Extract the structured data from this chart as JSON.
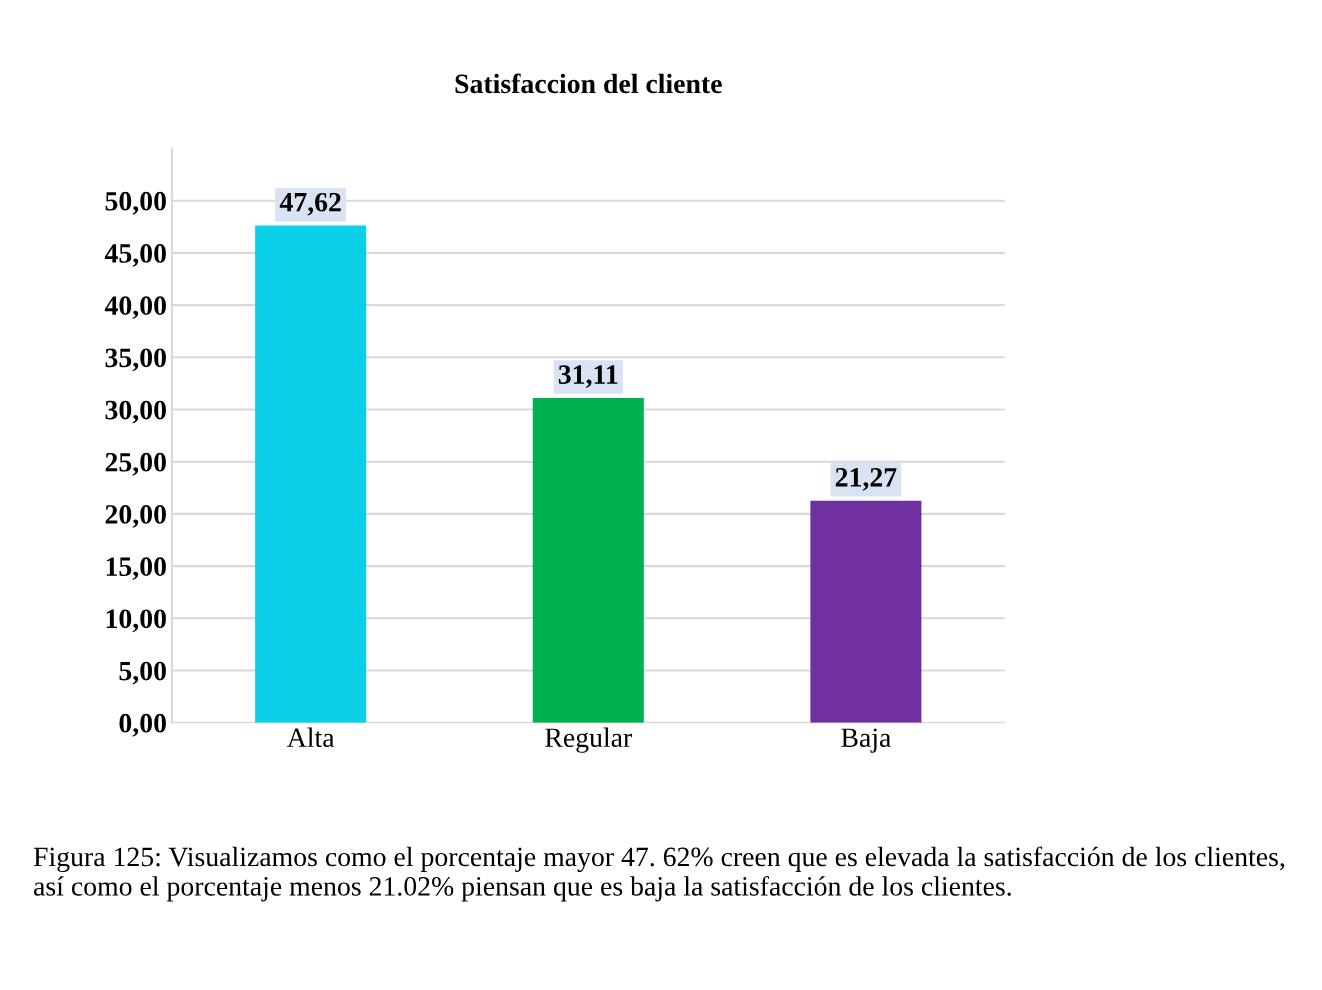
{
  "chart_data": {
    "type": "bar",
    "title": "Satisfaccion del cliente",
    "categories": [
      "Alta",
      "Regular",
      "Baja"
    ],
    "values": [
      47.62,
      31.11,
      21.27
    ],
    "colors": [
      "#0acfe6",
      "#00b050",
      "#7030a0"
    ],
    "value_labels": [
      "47,62",
      "31,11",
      "21,27"
    ],
    "ylim": [
      0,
      55
    ],
    "yticks": [
      {
        "value": 0,
        "label": "0,00"
      },
      {
        "value": 5,
        "label": "5,00"
      },
      {
        "value": 10,
        "label": "10,00"
      },
      {
        "value": 15,
        "label": "15,00"
      },
      {
        "value": 20,
        "label": "20,00"
      },
      {
        "value": 25,
        "label": "25,00"
      },
      {
        "value": 30,
        "label": "30,00"
      },
      {
        "value": 35,
        "label": "35,00"
      },
      {
        "value": 40,
        "label": "40,00"
      },
      {
        "value": 45,
        "label": "45,00"
      },
      {
        "value": 50,
        "label": "50,00"
      }
    ],
    "grid": "y",
    "annotations": [
      "Figura 125: Visualizamos como el porcentaje mayor 47. 62% creen que es elevada la satisfacción de los clientes, así como el porcentaje menos 21.02% piensan que es baja la satisfacción de los clientes."
    ]
  }
}
